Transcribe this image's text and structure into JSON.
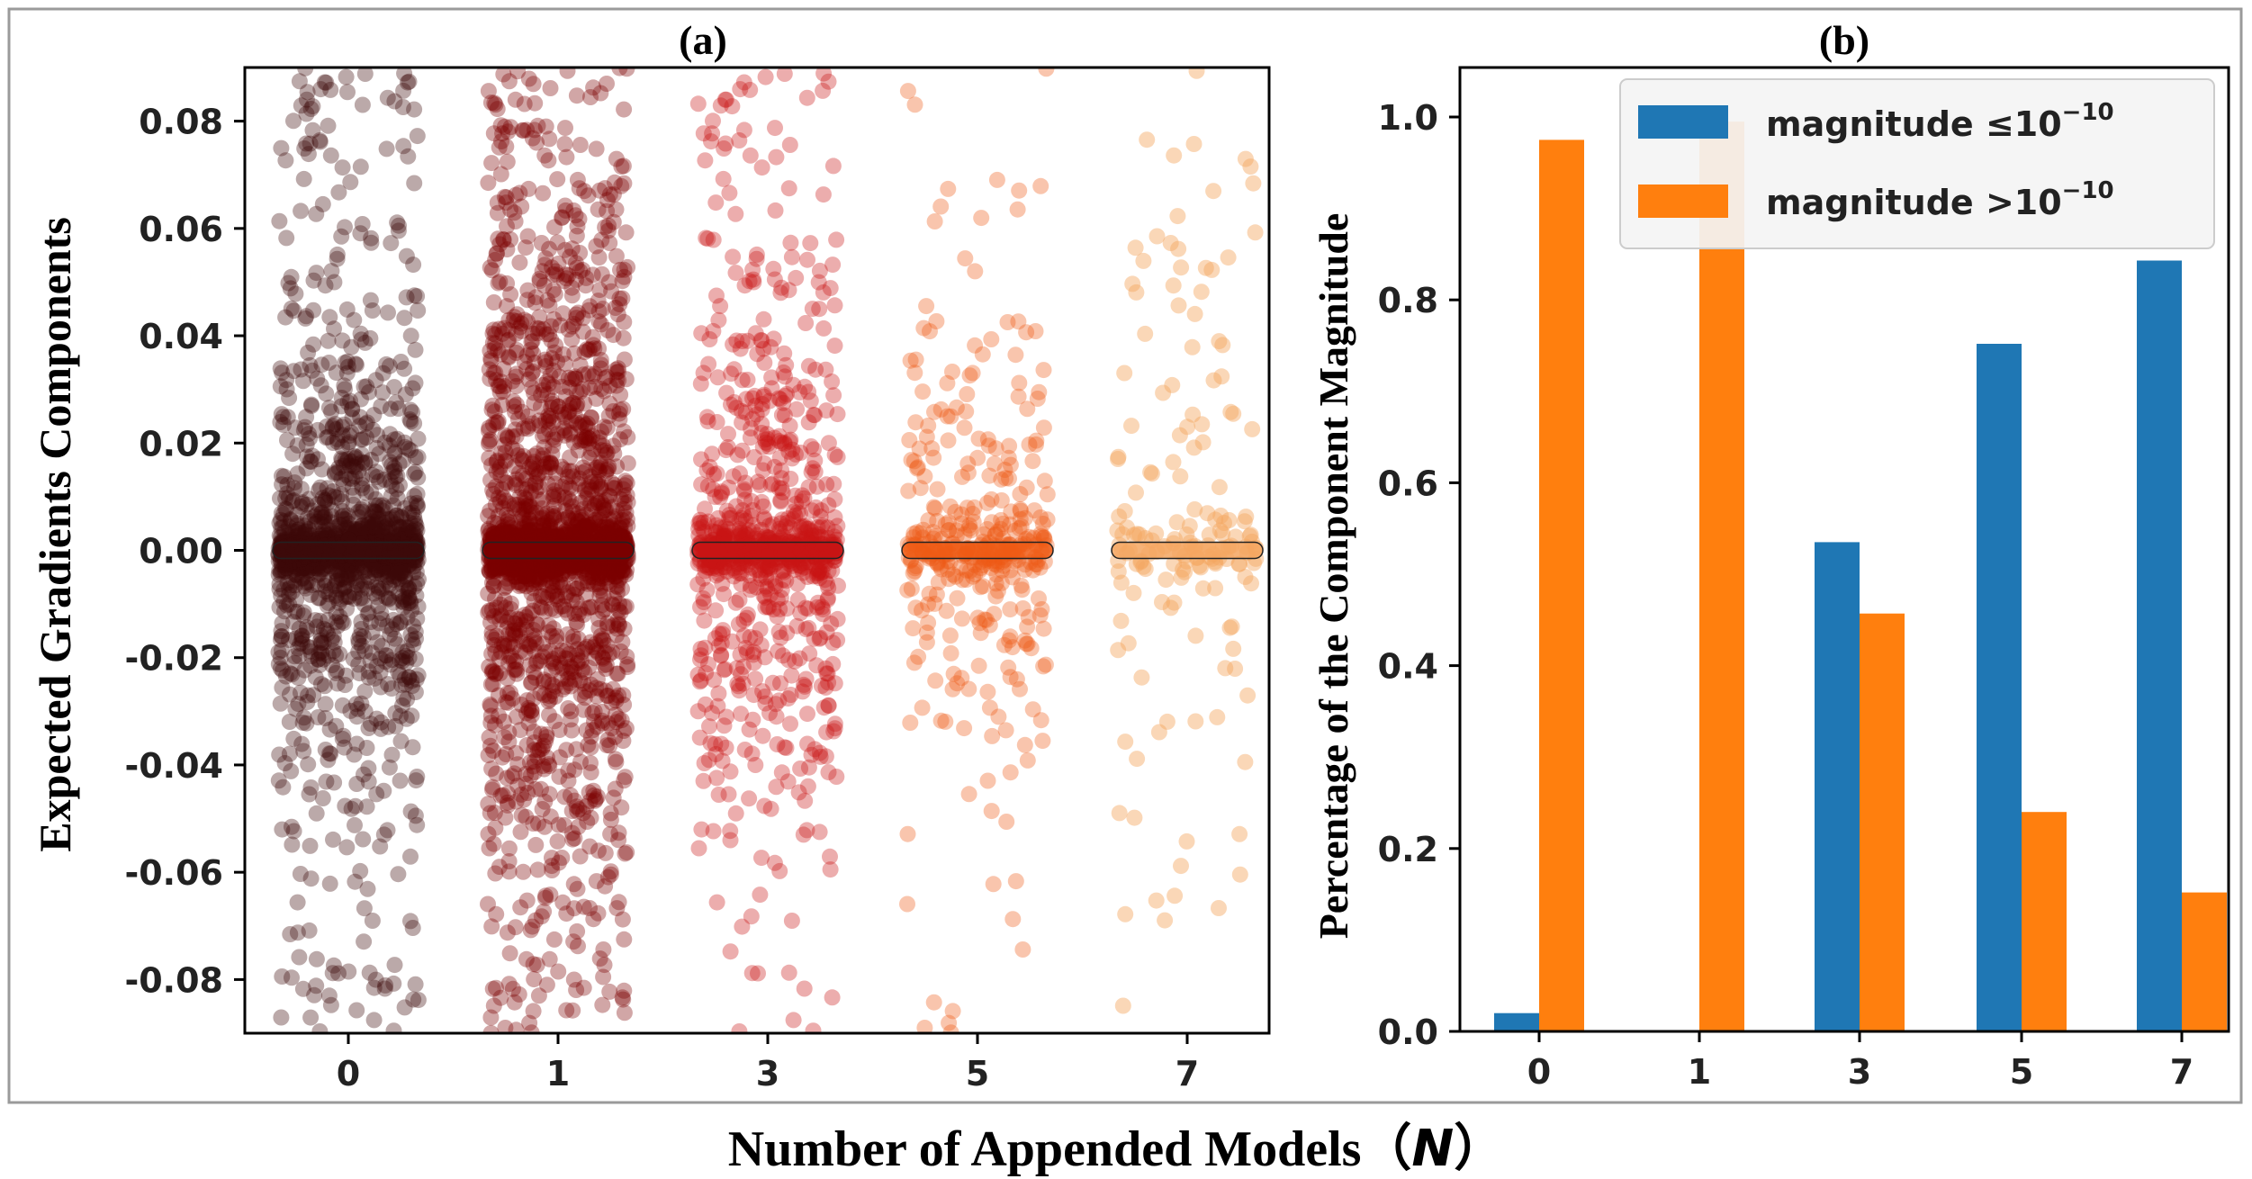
{
  "figure": {
    "shared_xlabel": "Number of Appended Models（",
    "shared_xlabel_var": "N",
    "shared_xlabel_close": "）"
  },
  "chart_data": [
    {
      "panel": "(a)",
      "type": "scatter",
      "title": "(a)",
      "xlabel": "",
      "ylabel": "Expected Gradients Components",
      "categories": [
        "0",
        "1",
        "3",
        "5",
        "7"
      ],
      "ylim": [
        -0.09,
        0.09
      ],
      "yticks": [
        "0.08",
        "0.06",
        "0.04",
        "0.02",
        "0.00",
        "-0.02",
        "-0.04",
        "-0.06",
        "-0.08"
      ],
      "ytick_values": [
        0.08,
        0.06,
        0.04,
        0.02,
        0.0,
        -0.02,
        -0.04,
        -0.06,
        -0.08
      ],
      "grid": false,
      "series": [
        {
          "name": "0",
          "color": "#3d0a0a",
          "approx_points": 1500,
          "spread_sd": 0.018,
          "tail": 0.09
        },
        {
          "name": "1",
          "color": "#7a0000",
          "approx_points": 2200,
          "spread_sd": 0.028,
          "tail": 0.09
        },
        {
          "name": "3",
          "color": "#c81414",
          "approx_points": 900,
          "spread_sd": 0.022,
          "tail": 0.09
        },
        {
          "name": "5",
          "color": "#ee5a14",
          "approx_points": 380,
          "spread_sd": 0.018,
          "tail": 0.09
        },
        {
          "name": "7",
          "color": "#f4a660",
          "approx_points": 170,
          "spread_sd": 0.024,
          "tail": 0.09
        }
      ]
    },
    {
      "panel": "(b)",
      "type": "bar",
      "title": "(b)",
      "xlabel": "",
      "ylabel": "Percentage of the Component Magnitude",
      "categories": [
        "0",
        "1",
        "3",
        "5",
        "7"
      ],
      "ylim": [
        0,
        1.0
      ],
      "yticks": [
        "0.0",
        "0.2",
        "0.4",
        "0.6",
        "0.8",
        "1.0"
      ],
      "ytick_values": [
        0.0,
        0.2,
        0.4,
        0.6,
        0.8,
        1.0
      ],
      "grid": false,
      "legend_position": "top-right",
      "series": [
        {
          "name": "magnitude ≤10",
          "superscript": "−10",
          "color": "#1f77b4",
          "values": [
            0.02,
            0.0,
            0.535,
            0.752,
            0.843
          ]
        },
        {
          "name": "magnitude >10",
          "superscript": "−10",
          "color": "#ff7f0e",
          "values": [
            0.975,
            0.995,
            0.457,
            0.24,
            0.152
          ]
        }
      ]
    }
  ]
}
